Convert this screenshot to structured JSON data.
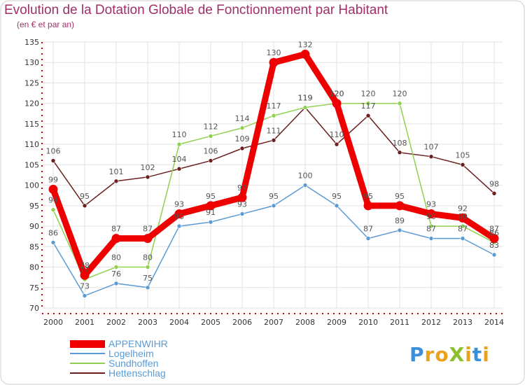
{
  "header": {
    "title": "Evolution de la Dotation Globale de Fonctionnement par Habitant",
    "subtitle": "(en € et par an)"
  },
  "logo": {
    "text": "ProXiti"
  },
  "colors": {
    "title": "#a0306a",
    "axis": "#cc0000",
    "grid": "#e3e3e3",
    "label": "#555555"
  },
  "chart_data": {
    "type": "line",
    "x": [
      "2000",
      "2001",
      "2002",
      "2003",
      "2004",
      "2005",
      "2006",
      "2007",
      "2008",
      "2009",
      "2010",
      "2011",
      "2012",
      "2013",
      "2014"
    ],
    "ylim": [
      70,
      135
    ],
    "yticks": [
      70,
      75,
      80,
      85,
      90,
      95,
      100,
      105,
      110,
      115,
      120,
      125,
      130,
      135
    ],
    "grid": true,
    "legend_position": "bottom-left",
    "series": [
      {
        "name": "APPENWIHR",
        "color": "#ee0000",
        "values": [
          99,
          78,
          87,
          87,
          93,
          95,
          97,
          130,
          132,
          120,
          95,
          95,
          93,
          92,
          87
        ]
      },
      {
        "name": "Logelheim",
        "color": "#5b9bd5",
        "values": [
          86,
          73,
          76,
          75,
          90,
          91,
          93,
          95,
          100,
          95,
          87,
          89,
          87,
          87,
          83
        ]
      },
      {
        "name": "Sundhoffen",
        "color": "#8fd14f",
        "values": [
          94,
          77,
          80,
          80,
          110,
          112,
          114,
          117,
          119,
          120,
          120,
          120,
          90,
          90,
          86
        ]
      },
      {
        "name": "Hettenschlag",
        "color": "#6b1f1f",
        "values": [
          106,
          95,
          101,
          102,
          104,
          106,
          109,
          111,
          119,
          110,
          117,
          108,
          107,
          105,
          98
        ]
      }
    ]
  }
}
